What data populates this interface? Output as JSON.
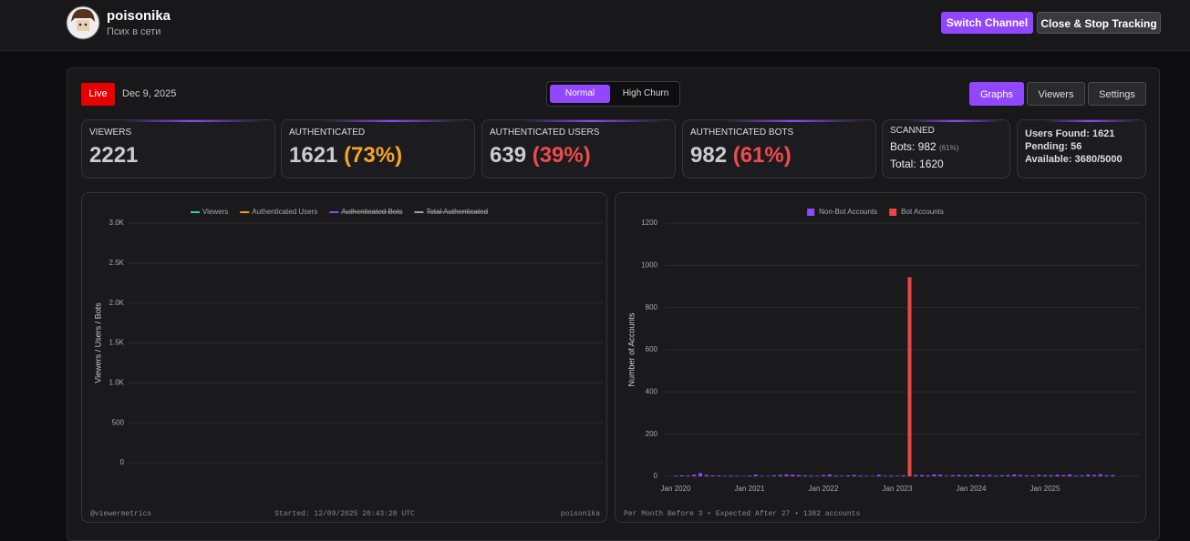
{
  "header": {
    "name": "poisonika",
    "status": "Псих в сети",
    "buttons": [
      "Switch Channel",
      "Close & Stop Tracking"
    ]
  },
  "toolbar": {
    "live": "Live",
    "date": "Dec 9, 2025",
    "modes": [
      "Normal",
      "High Churn"
    ],
    "tabs": [
      "Graphs",
      "Viewers",
      "Settings"
    ]
  },
  "stats": [
    {
      "label": "VIEWERS",
      "value": "2221"
    },
    {
      "label": "AUTHENTICATED",
      "value": "1621",
      "percent": "(73%)"
    },
    {
      "label": "AUTHENTICATED USERS",
      "value": "639",
      "percent": "(39%)"
    },
    {
      "label": "AUTHENTICATED BOTS",
      "value": "982",
      "percent": "(61%)"
    }
  ],
  "scanned": {
    "label": "SCANNED",
    "bots": "Bots: 982",
    "bots_percent": "(61%)",
    "total": "Total: 1620"
  },
  "progress": [
    "Users Found: 1621",
    "Pending: 56",
    "Available: 3680/5000"
  ],
  "chart_data": [
    {
      "type": "line",
      "y_label": "Viewers / Users / Bots",
      "x": [],
      "series": [
        {
          "name": "Viewers",
          "color": "#34d399",
          "values": []
        },
        {
          "name": "Authenticated Users",
          "color": "#f59e0b",
          "values": []
        },
        {
          "name": "Authenticated Bots",
          "color": "#9147ff",
          "values": [],
          "hidden": true
        },
        {
          "name": "Total Authenticated",
          "color": "#9ca3af",
          "values": [],
          "hidden": true
        }
      ],
      "ylim": [
        0,
        3000
      ],
      "yticks": [
        0,
        500,
        {
          "value": 1000,
          "label": "1.0K"
        },
        {
          "value": 1500,
          "label": "1.5K"
        },
        {
          "value": 2000,
          "label": "2.0K"
        },
        {
          "value": 2500,
          "label": "2.5K"
        },
        {
          "value": 3000,
          "label": "3.0K"
        }
      ],
      "grid": true,
      "footer_left": "@viewermetrics",
      "footer_center": "Started: 12/09/2025 20:43:28 UTC",
      "footer_right": "poisonika"
    },
    {
      "type": "bar",
      "y_label": "Number of Accounts",
      "categories": [
        "Jan 2020",
        null,
        null,
        null,
        null,
        null,
        null,
        null,
        null,
        null,
        null,
        null,
        "Jan 2021",
        null,
        null,
        null,
        null,
        null,
        null,
        null,
        null,
        null,
        null,
        null,
        "Jan 2022",
        null,
        null,
        null,
        null,
        null,
        null,
        null,
        null,
        null,
        null,
        null,
        "Jan 2023",
        null,
        null,
        null,
        null,
        null,
        null,
        null,
        null,
        null,
        null,
        null,
        "Jan 2024",
        null,
        null,
        null,
        null,
        null,
        null,
        null,
        null,
        null,
        null,
        null,
        "Jan 2025",
        null,
        null,
        null,
        null,
        null,
        null,
        null,
        null,
        null,
        null,
        null
      ],
      "series": [
        {
          "name": "Non-Bot Accounts",
          "color": "#9147ff",
          "values": [
            3,
            5,
            4,
            8,
            15,
            7,
            5,
            4,
            3,
            4,
            3,
            2,
            4,
            8,
            3,
            2,
            5,
            7,
            9,
            8,
            6,
            5,
            4,
            3,
            6,
            9,
            4,
            3,
            5,
            7,
            4,
            3,
            2,
            8,
            3,
            4,
            3,
            5,
            4,
            7,
            6,
            5,
            9,
            8,
            3,
            6,
            7,
            5,
            6,
            8,
            5,
            7,
            4,
            5,
            6,
            9,
            6,
            5,
            4,
            7,
            6,
            5,
            8,
            6,
            9,
            4,
            5,
            8,
            6,
            10,
            5,
            6
          ]
        },
        {
          "name": "Bot Accounts",
          "color": "#ef4444",
          "values": [
            0,
            0,
            0,
            0,
            0,
            0,
            0,
            0,
            0,
            0,
            0,
            0,
            0,
            0,
            0,
            0,
            0,
            0,
            0,
            0,
            0,
            0,
            0,
            0,
            0,
            0,
            0,
            0,
            0,
            0,
            0,
            0,
            0,
            0,
            0,
            0,
            0,
            0,
            944,
            0,
            0,
            0,
            0,
            0,
            0,
            0,
            0,
            0,
            0,
            0,
            0,
            0,
            0,
            0,
            0,
            0,
            0,
            0,
            0,
            0,
            0,
            0,
            0,
            0,
            0,
            0,
            0,
            0,
            0,
            0,
            0,
            0
          ]
        }
      ],
      "ylim": [
        0,
        1200
      ],
      "yticks": [
        0,
        200,
        400,
        600,
        800,
        1000,
        1200
      ],
      "grid": true,
      "footer_left": "Per Month Before 3 • Expected After 27 • 1382 accounts"
    }
  ]
}
